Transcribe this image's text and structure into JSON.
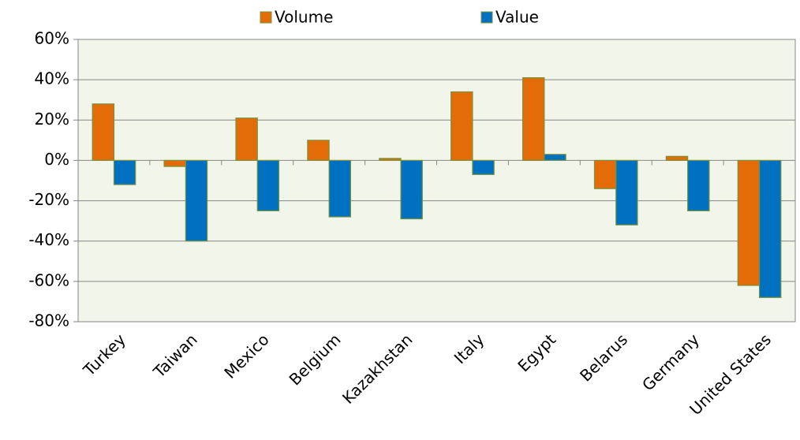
{
  "chart_data": {
    "type": "bar",
    "categories": [
      "Turkey",
      "Taiwan",
      "Mexico",
      "Belgium",
      "Kazakhstan",
      "Italy",
      "Egypt",
      "Belarus",
      "Germany",
      "United States"
    ],
    "series": [
      {
        "name": "Volume",
        "color": "#e36c09",
        "values": [
          28,
          -3,
          21,
          10,
          1,
          34,
          41,
          -14,
          2,
          -62
        ]
      },
      {
        "name": "Value",
        "color": "#0070c0",
        "values": [
          -12,
          -40,
          -25,
          -28,
          -29,
          -7,
          3,
          -32,
          -25,
          -68
        ]
      }
    ],
    "ylim": [
      -80,
      60
    ],
    "yticks": [
      {
        "value": -80,
        "label": "-80%"
      },
      {
        "value": -60,
        "label": "-60%"
      },
      {
        "value": -40,
        "label": "-40%"
      },
      {
        "value": -20,
        "label": "-20%"
      },
      {
        "value": 0,
        "label": "0%"
      },
      {
        "value": 20,
        "label": "20%"
      },
      {
        "value": 40,
        "label": "40%"
      },
      {
        "value": 60,
        "label": "60%"
      }
    ],
    "grid": true,
    "legend": "top"
  }
}
